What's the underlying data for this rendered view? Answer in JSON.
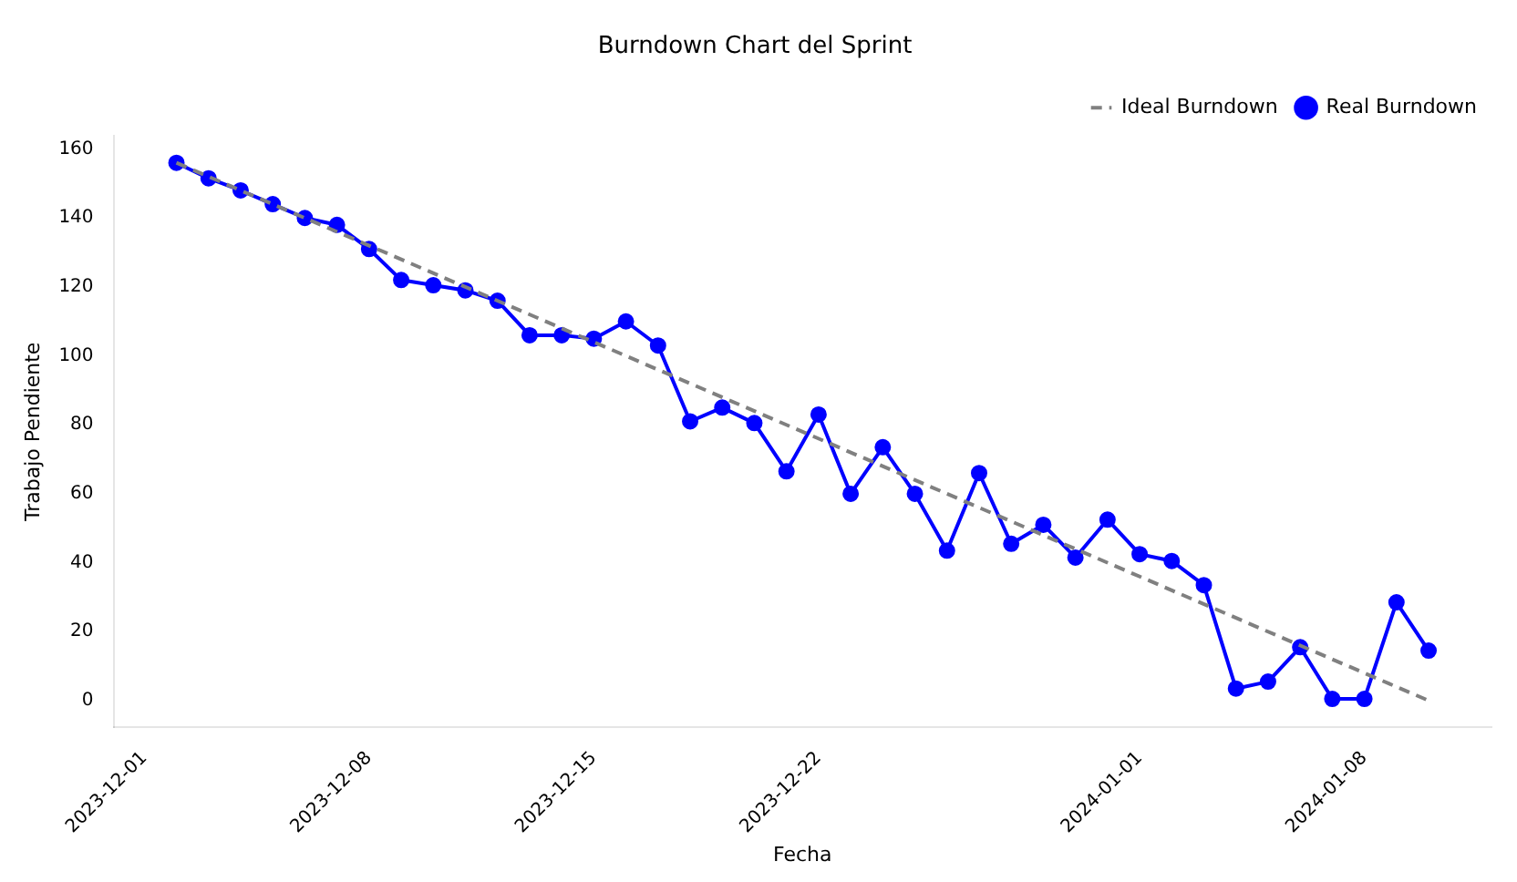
{
  "chart_data": {
    "type": "line",
    "title": "Burndown Chart del Sprint",
    "xlabel": "Fecha",
    "ylabel": "Trabajo Pendiente",
    "x": [
      "2023-12-02",
      "2023-12-03",
      "2023-12-04",
      "2023-12-05",
      "2023-12-06",
      "2023-12-07",
      "2023-12-08",
      "2023-12-09",
      "2023-12-10",
      "2023-12-11",
      "2023-12-12",
      "2023-12-13",
      "2023-12-14",
      "2023-12-15",
      "2023-12-16",
      "2023-12-17",
      "2023-12-18",
      "2023-12-19",
      "2023-12-20",
      "2023-12-21",
      "2023-12-22",
      "2023-12-23",
      "2023-12-24",
      "2023-12-25",
      "2023-12-26",
      "2023-12-27",
      "2023-12-28",
      "2023-12-29",
      "2023-12-30",
      "2023-12-31",
      "2024-01-01",
      "2024-01-02",
      "2024-01-03",
      "2024-01-04",
      "2024-01-05",
      "2024-01-06",
      "2024-01-07",
      "2024-01-08",
      "2024-01-09",
      "2024-01-10"
    ],
    "series": [
      {
        "name": "Ideal Burndown",
        "color": "#808080",
        "line_style": "dashed",
        "marker": "none",
        "x": [
          "2023-12-02",
          "2024-01-10"
        ],
        "values": [
          156,
          0
        ]
      },
      {
        "name": "Real Burndown",
        "color": "#0000ff",
        "line_style": "solid",
        "marker": "circle",
        "values": [
          156,
          151.5,
          148,
          144,
          140,
          138,
          131,
          122,
          120.5,
          119,
          116,
          106,
          106,
          105,
          110,
          103,
          81,
          85,
          80.5,
          66.5,
          83,
          60,
          73.5,
          60,
          43.5,
          66,
          45.5,
          51,
          41.5,
          52.5,
          42.5,
          40.5,
          33.5,
          3.5,
          5.5,
          15.5,
          0.5,
          0.5,
          28.5,
          14.5
        ]
      }
    ],
    "xlim": [
      "2023-11-30T01:00",
      "2024-01-11T23:00"
    ],
    "xticks": [
      "2023-12-01",
      "2023-12-08",
      "2023-12-15",
      "2023-12-22",
      "2024-01-01",
      "2024-01-08"
    ],
    "ylim": [
      -7.8,
      163.8
    ],
    "yticks": [
      0,
      20,
      40,
      60,
      80,
      100,
      120,
      140,
      160
    ],
    "grid": false,
    "legend": "top right"
  }
}
